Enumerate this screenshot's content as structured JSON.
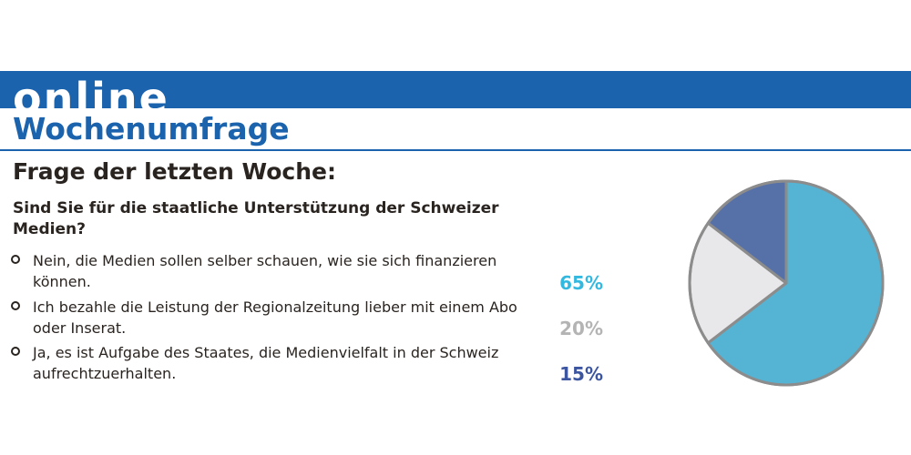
{
  "header": {
    "band_title": "online",
    "subtitle": "Wochenumfrage"
  },
  "section": {
    "heading": "Frage der letzten Woche:",
    "question": "Sind Sie für die staatliche Unterstützung der Schweizer Medien?"
  },
  "options": [
    {
      "text": "Nein, die Medien sollen selber schauen, wie sie sich finanzieren können.",
      "percent_label": "65%"
    },
    {
      "text": "Ich bezahle die Leistung der Regionalzeitung lieber mit einem Abo oder Inserat.",
      "percent_label": "20%"
    },
    {
      "text": "Ja, es ist Aufgabe des Staates, die Medienvielfalt in der Schweiz aufrechtzuerhalten.",
      "percent_label": "15%"
    }
  ],
  "colors": {
    "brand_blue": "#1b63ad",
    "slice_65": "#55b4d4",
    "slice_20": "#e8e8ea",
    "slice_15": "#5670a8",
    "pct_65": "#33b8e0",
    "pct_20": "#b4b4b4",
    "pct_15": "#3c55a0",
    "pie_border": "#8c8c8c"
  },
  "chart_data": {
    "type": "pie",
    "categories": [
      "Nein, die Medien sollen selber schauen, wie sie sich finanzieren können.",
      "Ich bezahle die Leistung der Regionalzeitung lieber mit einem Abo oder Inserat.",
      "Ja, es ist Aufgabe des Staates, die Medienvielfalt in der Schweiz aufrechtzuerhalten."
    ],
    "values": [
      65,
      20,
      15
    ],
    "unit": "%"
  }
}
